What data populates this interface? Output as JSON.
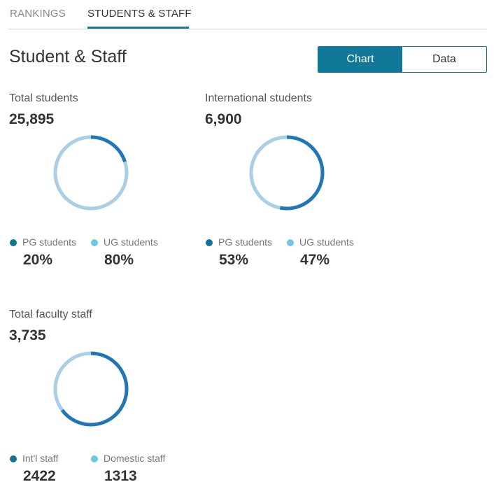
{
  "tabs": [
    {
      "label": "RANKINGS",
      "active": false
    },
    {
      "label": "STUDENTS & STAFF",
      "active": true
    }
  ],
  "page_title": "Student & Staff",
  "view_toggle": {
    "chart_label": "Chart",
    "data_label": "Data",
    "selected": "Chart"
  },
  "colors": {
    "accent": "#12789a",
    "donut_primary": "#2077b4",
    "donut_secondary": "#aacfe5",
    "legend_primary": "#10738f",
    "legend_secondary": "#6ec6e6"
  },
  "cards": {
    "total_students": {
      "label": "Total students",
      "total": "25,895",
      "legend": [
        {
          "label": "PG students",
          "value": "20%"
        },
        {
          "label": "UG students",
          "value": "80%"
        }
      ]
    },
    "international_students": {
      "label": "International students",
      "total": "6,900",
      "legend": [
        {
          "label": "PG students",
          "value": "53%"
        },
        {
          "label": "UG students",
          "value": "47%"
        }
      ]
    },
    "faculty_staff": {
      "label": "Total faculty staff",
      "total": "3,735",
      "legend": [
        {
          "label": "Int'l staff",
          "value": "2422"
        },
        {
          "label": "Domestic staff",
          "value": "1313"
        }
      ]
    }
  },
  "chart_data": [
    {
      "type": "pie",
      "categories": [
        "PG students",
        "UG students"
      ],
      "values": [
        20,
        80
      ]
    },
    {
      "type": "pie",
      "categories": [
        "PG students",
        "UG students"
      ],
      "values": [
        53,
        47
      ]
    },
    {
      "type": "pie",
      "categories": [
        "Int'l staff",
        "Domestic staff"
      ],
      "values": [
        2422,
        1313
      ]
    }
  ]
}
